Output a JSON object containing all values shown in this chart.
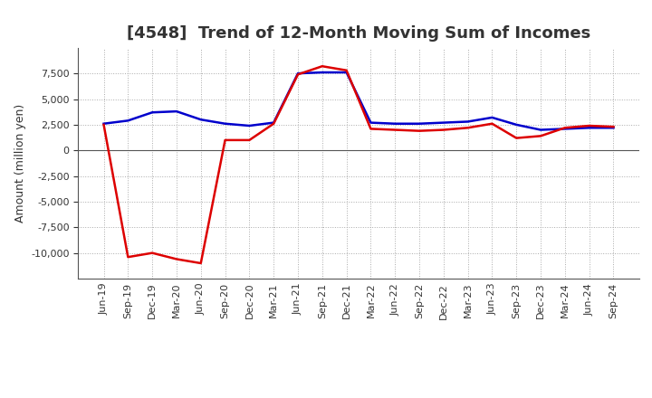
{
  "title": "[4548]  Trend of 12-Month Moving Sum of Incomes",
  "ylabel": "Amount (million yen)",
  "x_labels": [
    "Jun-19",
    "Sep-19",
    "Dec-19",
    "Mar-20",
    "Jun-20",
    "Sep-20",
    "Dec-20",
    "Mar-21",
    "Jun-21",
    "Sep-21",
    "Dec-21",
    "Mar-22",
    "Jun-22",
    "Sep-22",
    "Dec-22",
    "Mar-23",
    "Jun-23",
    "Sep-23",
    "Dec-23",
    "Mar-24",
    "Jun-24",
    "Sep-24"
  ],
  "ordinary_income": [
    2600,
    2900,
    3700,
    3800,
    3000,
    2600,
    2400,
    2700,
    7500,
    7600,
    7600,
    2700,
    2600,
    2600,
    2700,
    2800,
    3200,
    2500,
    2000,
    2100,
    2200,
    2200
  ],
  "net_income": [
    2500,
    -10400,
    -10000,
    -10600,
    -11000,
    1000,
    1000,
    2600,
    7400,
    8200,
    7800,
    2100,
    2000,
    1900,
    2000,
    2200,
    2600,
    1200,
    1400,
    2200,
    2400,
    2300
  ],
  "ordinary_color": "#0000cc",
  "net_color": "#dd0000",
  "ylim": [
    -12500,
    10000
  ],
  "yticks": [
    -10000,
    -7500,
    -5000,
    -2500,
    0,
    2500,
    5000,
    7500
  ],
  "background_color": "#ffffff",
  "grid_color": "#aaaaaa",
  "title_fontsize": 13,
  "title_color": "#333333",
  "axis_label_fontsize": 9,
  "tick_fontsize": 8,
  "legend_fontsize": 10
}
